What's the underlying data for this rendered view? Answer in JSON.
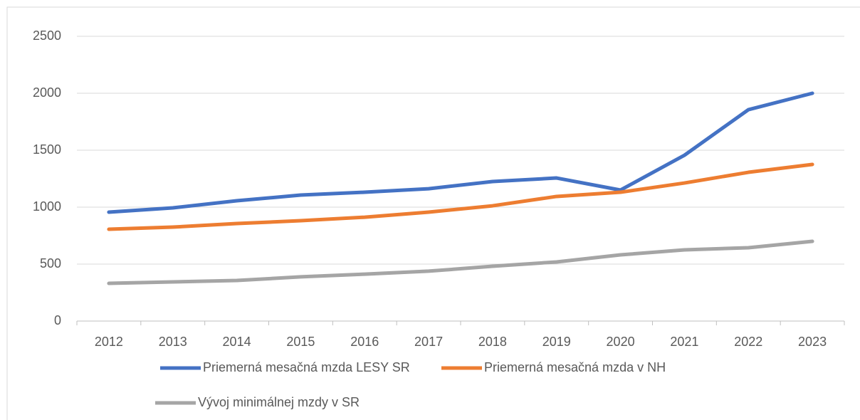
{
  "chart_data": {
    "type": "line",
    "categories": [
      "2012",
      "2013",
      "2014",
      "2015",
      "2016",
      "2017",
      "2018",
      "2019",
      "2020",
      "2021",
      "2022",
      "2023"
    ],
    "series": [
      {
        "name": "Priemerná mesačná mzda LESY SR",
        "color": "#4472c4",
        "values": [
          956,
          994,
          1056,
          1106,
          1131,
          1162,
          1225,
          1256,
          1150,
          1456,
          1856,
          2000
        ]
      },
      {
        "name": "Priemerná mesačná mzda v NH",
        "color": "#ed7d31",
        "values": [
          806,
          825,
          856,
          881,
          912,
          956,
          1012,
          1094,
          1131,
          1212,
          1306,
          1375
        ]
      },
      {
        "name": "Vývoj minimálnej mzdy v SR",
        "color": "#a5a5a5",
        "values": [
          331,
          344,
          356,
          388,
          412,
          438,
          481,
          519,
          581,
          625,
          644,
          700
        ]
      }
    ],
    "ylim": [
      0,
      2500
    ],
    "yticks": [
      0,
      500,
      1000,
      1500,
      2000,
      2500
    ],
    "grid": true,
    "legend": "bottom"
  }
}
